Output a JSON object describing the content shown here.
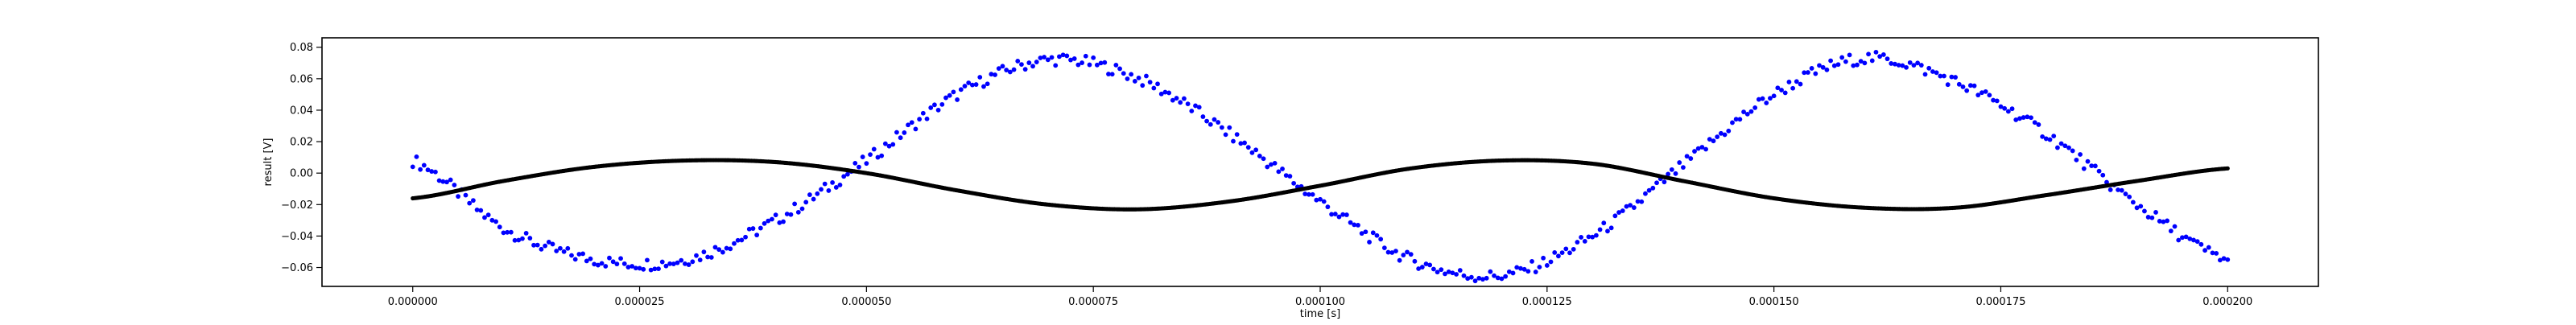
{
  "chart_data": {
    "type": "scatter",
    "title": "",
    "xlabel": "time [s]",
    "ylabel": "result [V]",
    "xlim": [
      -1e-05,
      0.00021
    ],
    "ylim": [
      -0.072,
      0.086
    ],
    "grid": false,
    "x_ticks": [
      {
        "value": 0.0,
        "label": "0.000000"
      },
      {
        "value": 2.5e-05,
        "label": "0.000025"
      },
      {
        "value": 5e-05,
        "label": "0.000050"
      },
      {
        "value": 7.5e-05,
        "label": "0.000075"
      },
      {
        "value": 0.0001,
        "label": "0.000100"
      },
      {
        "value": 0.000125,
        "label": "0.000125"
      },
      {
        "value": 0.00015,
        "label": "0.000150"
      },
      {
        "value": 0.000175,
        "label": "0.000175"
      },
      {
        "value": 0.0002,
        "label": "0.000200"
      }
    ],
    "y_ticks": [
      {
        "value": -0.06,
        "label": "−0.06"
      },
      {
        "value": -0.04,
        "label": "−0.04"
      },
      {
        "value": -0.02,
        "label": "−0.02"
      },
      {
        "value": 0.0,
        "label": "0.00"
      },
      {
        "value": 0.02,
        "label": "0.02"
      },
      {
        "value": 0.04,
        "label": "0.04"
      },
      {
        "value": 0.06,
        "label": "0.06"
      },
      {
        "value": 0.08,
        "label": "0.08"
      }
    ],
    "series": [
      {
        "color": "#0000ff",
        "marker": "dot",
        "x": [
          0.0,
          1e-05,
          2e-05,
          3e-05,
          4e-05,
          5e-05,
          6e-05,
          7e-05,
          8e-05,
          9e-05,
          0.0001,
          0.00011,
          0.00012,
          0.00013,
          0.00014,
          0.00015,
          0.00016,
          0.00017,
          0.00018,
          0.00019,
          0.0002
        ],
        "y": [
          0.008,
          -0.035,
          -0.055,
          -0.055,
          -0.03,
          0.008,
          0.05,
          0.072,
          0.06,
          0.025,
          -0.018,
          -0.055,
          -0.065,
          -0.04,
          0.005,
          0.05,
          0.073,
          0.058,
          0.025,
          -0.02,
          -0.055
        ]
      },
      {
        "color": "#000000",
        "marker": "dot",
        "x": [
          0.0,
          1e-05,
          2e-05,
          3e-05,
          4e-05,
          5e-05,
          6e-05,
          7e-05,
          8e-05,
          9e-05,
          0.0001,
          0.00011,
          0.00012,
          0.00013,
          0.00014,
          0.00015,
          0.00016,
          0.00017,
          0.00018,
          0.00019,
          0.0002
        ],
        "y": [
          -0.016,
          -0.005,
          0.004,
          0.008,
          0.007,
          0.0,
          -0.011,
          -0.02,
          -0.023,
          -0.018,
          -0.008,
          0.003,
          0.008,
          0.006,
          -0.005,
          -0.016,
          -0.022,
          -0.022,
          -0.014,
          -0.005,
          0.003
        ]
      }
    ]
  }
}
